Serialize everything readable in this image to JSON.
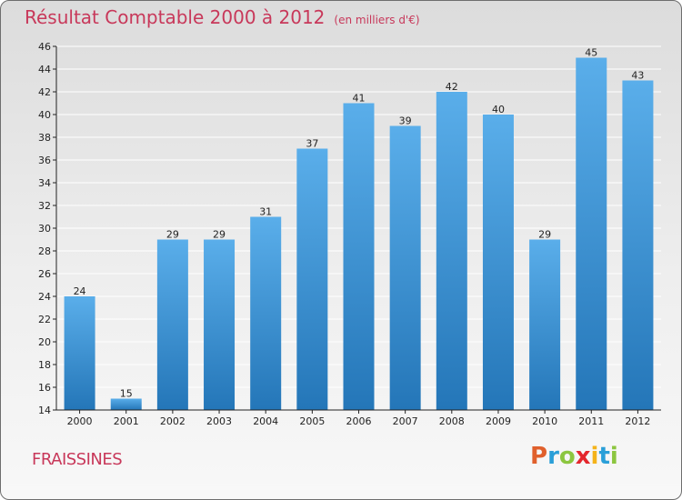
{
  "title": "Résultat Comptable 2000 à 2012",
  "subtitle": "(en milliers d'€)",
  "place": "FRAISSINES",
  "logo": {
    "letters": [
      "P",
      "r",
      "o",
      "x",
      "i",
      "t",
      "i"
    ],
    "colors": [
      "#e0602c",
      "#2a9fd8",
      "#8cc63f",
      "#e4272d",
      "#f4b31a",
      "#2a9fd8",
      "#8cc63f"
    ]
  },
  "chart_data": {
    "type": "bar",
    "categories": [
      "2000",
      "2001",
      "2002",
      "2003",
      "2004",
      "2005",
      "2006",
      "2007",
      "2008",
      "2009",
      "2010",
      "2011",
      "2012"
    ],
    "values": [
      24,
      15,
      29,
      29,
      31,
      37,
      41,
      39,
      42,
      40,
      29,
      45,
      43
    ],
    "ylim": [
      14,
      46
    ],
    "yticks": [
      14,
      16,
      18,
      20,
      22,
      24,
      26,
      28,
      30,
      32,
      34,
      36,
      38,
      40,
      42,
      44,
      46
    ],
    "grid": true,
    "bar_color_top": "#5aaeea",
    "bar_color_bottom": "#2476b8",
    "axis_color": "#222222",
    "grid_color": "#ffffff"
  }
}
